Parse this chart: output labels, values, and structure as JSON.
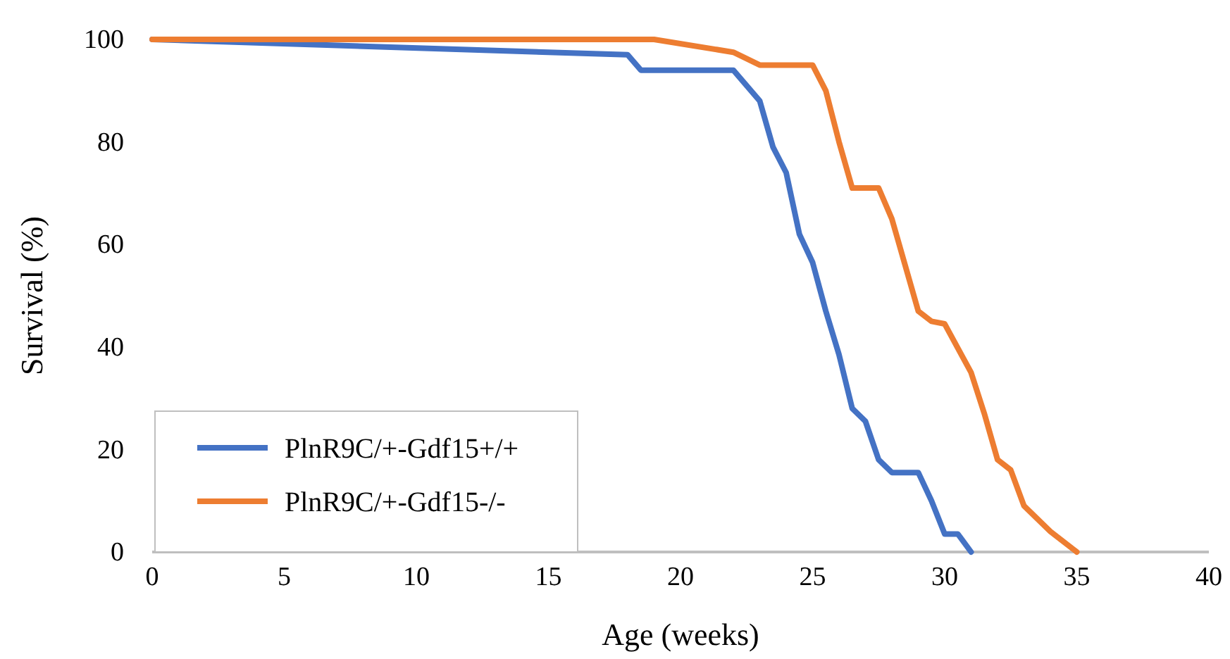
{
  "chart_data": {
    "type": "line",
    "xlabel": "Age (weeks)",
    "ylabel": "Survival (%)",
    "xlim": [
      0,
      40
    ],
    "xticks": [
      0,
      5,
      10,
      15,
      20,
      25,
      30,
      35,
      40
    ],
    "ylim": [
      0,
      100
    ],
    "yticks": [
      0,
      20,
      40,
      60,
      80,
      100
    ],
    "grid": false,
    "legend": "bottom left",
    "line_style": "solid",
    "marker": "none",
    "series": [
      {
        "name": "PlnR9C/+-Gdf15+/+",
        "color": "#4472c4",
        "x": [
          0,
          18,
          18.5,
          22,
          23,
          23.5,
          24,
          24.5,
          25,
          25.5,
          26,
          26.5,
          27,
          27.5,
          28,
          29,
          29.5,
          30,
          30.5,
          31
        ],
        "values": [
          100,
          97,
          94,
          94,
          88,
          79,
          74,
          62,
          56.5,
          47,
          38.5,
          28,
          25.5,
          18,
          15.5,
          15.5,
          10,
          3.5,
          3.5,
          0
        ]
      },
      {
        "name": "PlnR9C/+-Gdf15-/-",
        "color": "#ed7d31",
        "x": [
          0,
          19,
          22,
          23,
          25,
          25.5,
          26,
          26.5,
          27.5,
          28,
          28.5,
          29,
          29.5,
          30,
          31,
          31.5,
          32,
          32.5,
          33,
          34,
          35
        ],
        "values": [
          100,
          100,
          97.5,
          95,
          95,
          90,
          80,
          71,
          71,
          65,
          56,
          47,
          45,
          44.5,
          35,
          27,
          18,
          16,
          9,
          4,
          0
        ]
      }
    ]
  }
}
